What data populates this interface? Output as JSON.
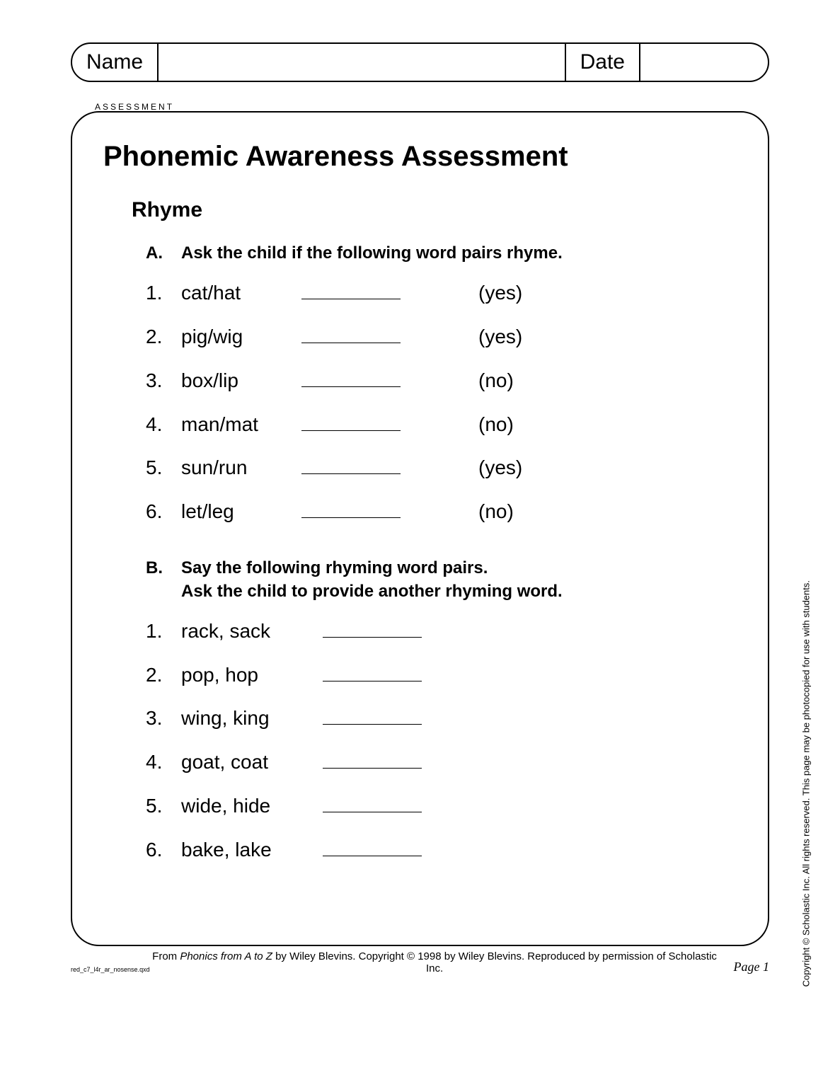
{
  "header": {
    "name_label": "Name",
    "date_label": "Date"
  },
  "tab": "ASSESSMENT",
  "title": "Phonemic Awareness Assessment",
  "section": "Rhyme",
  "partA": {
    "prefix": "A.",
    "instruction": "Ask the child if the following word pairs rhyme.",
    "items": [
      {
        "n": "1.",
        "pair": "cat/hat",
        "answer": "(yes)"
      },
      {
        "n": "2.",
        "pair": "pig/wig",
        "answer": "(yes)"
      },
      {
        "n": "3.",
        "pair": "box/lip",
        "answer": "(no)"
      },
      {
        "n": "4.",
        "pair": "man/mat",
        "answer": "(no)"
      },
      {
        "n": "5.",
        "pair": "sun/run",
        "answer": "(yes)"
      },
      {
        "n": "6.",
        "pair": "let/leg",
        "answer": "(no)"
      }
    ]
  },
  "partB": {
    "prefix": "B.",
    "instruction_line1": "Say the following rhyming word pairs.",
    "instruction_line2": "Ask the child to provide another rhyming word.",
    "items": [
      {
        "n": "1.",
        "pair": "rack, sack"
      },
      {
        "n": "2.",
        "pair": "pop, hop"
      },
      {
        "n": "3.",
        "pair": "wing, king"
      },
      {
        "n": "4.",
        "pair": "goat, coat"
      },
      {
        "n": "5.",
        "pair": "wide, hide"
      },
      {
        "n": "6.",
        "pair": "bake, lake"
      }
    ]
  },
  "side_copyright": "Copyright © Scholastic Inc. All rights reserved. This page may be photocopied for use with students.",
  "footer": {
    "tiny": "red_c7_l4r_ar_nosense.qxd",
    "from": "From ",
    "book": "Phonics from A to Z ",
    "rest": " by Wiley Blevins. Copyright © 1998 by Wiley Blevins. Reproduced by permission of Scholastic Inc.",
    "page": "Page 1"
  }
}
